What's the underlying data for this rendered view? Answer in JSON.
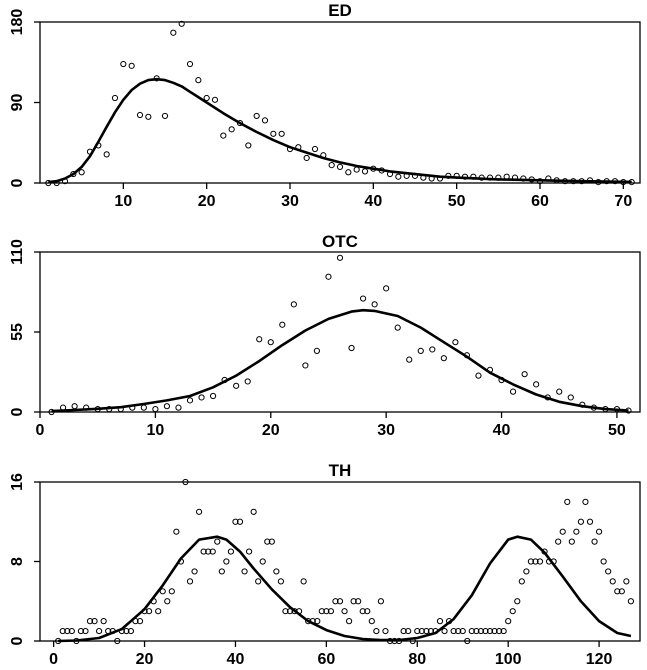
{
  "chart_data": [
    {
      "type": "scatter",
      "title": "ED",
      "xlim": [
        0,
        72
      ],
      "ylim": [
        0,
        180
      ],
      "xticks": [
        10,
        20,
        30,
        40,
        50,
        60,
        70
      ],
      "yticks": [
        0,
        90,
        180
      ],
      "series": [
        {
          "kind": "points",
          "x": [
            1,
            2,
            3,
            4,
            5,
            6,
            7,
            8,
            9,
            10,
            11,
            12,
            13,
            14,
            15,
            16,
            17,
            18,
            19,
            20,
            21,
            22,
            23,
            24,
            25,
            26,
            27,
            28,
            29,
            30,
            31,
            32,
            33,
            34,
            35,
            36,
            37,
            38,
            39,
            40,
            41,
            42,
            43,
            44,
            45,
            46,
            47,
            48,
            49,
            50,
            51,
            52,
            53,
            54,
            55,
            56,
            57,
            58,
            59,
            60,
            61,
            62,
            63,
            64,
            65,
            66,
            67,
            68,
            69,
            70,
            71
          ],
          "y": [
            0,
            0,
            2,
            10,
            12,
            35,
            42,
            32,
            95,
            133,
            131,
            76,
            74,
            117,
            75,
            168,
            178,
            133,
            115,
            95,
            93,
            53,
            60,
            67,
            42,
            75,
            70,
            55,
            55,
            38,
            40,
            28,
            38,
            31,
            20,
            18,
            12,
            15,
            13,
            16,
            14,
            10,
            7,
            8,
            8,
            6,
            5,
            5,
            8,
            8,
            7,
            7,
            6,
            6,
            6,
            7,
            6,
            5,
            4,
            2,
            5,
            3,
            2,
            2,
            2,
            3,
            1,
            2,
            2,
            1,
            1
          ]
        },
        {
          "kind": "fit",
          "x": [
            1,
            2,
            3,
            4,
            5,
            6,
            7,
            8,
            9,
            10,
            11,
            12,
            13,
            14,
            15,
            16,
            17,
            18,
            19,
            20,
            22,
            24,
            26,
            28,
            30,
            32,
            34,
            36,
            38,
            40,
            42,
            44,
            46,
            48,
            50,
            55,
            60,
            65,
            71
          ],
          "y": [
            1,
            2,
            5,
            10,
            18,
            30,
            46,
            63,
            79,
            93,
            104,
            111,
            115,
            116,
            115,
            112,
            108,
            102,
            96,
            90,
            78,
            67,
            57,
            48,
            40,
            34,
            28,
            23,
            19,
            16,
            13,
            11,
            9,
            7,
            6,
            4,
            3,
            2,
            1.2
          ]
        }
      ]
    },
    {
      "type": "scatter",
      "title": "OTC",
      "xlim": [
        0,
        52
      ],
      "ylim": [
        0,
        110
      ],
      "xticks": [
        0,
        10,
        20,
        30,
        40,
        50
      ],
      "yticks": [
        0,
        55,
        110
      ],
      "series": [
        {
          "kind": "points",
          "x": [
            1,
            2,
            3,
            4,
            5,
            6,
            7,
            8,
            9,
            10,
            11,
            12,
            13,
            14,
            15,
            16,
            17,
            18,
            19,
            20,
            21,
            22,
            23,
            24,
            25,
            26,
            27,
            28,
            29,
            30,
            31,
            32,
            33,
            34,
            35,
            36,
            37,
            38,
            39,
            40,
            41,
            42,
            43,
            44,
            45,
            46,
            47,
            48,
            49,
            50,
            51
          ],
          "y": [
            0,
            3,
            4,
            3,
            2,
            2,
            2,
            3,
            3,
            2,
            4,
            3,
            8,
            10,
            11,
            22,
            18,
            21,
            50,
            48,
            60,
            74,
            32,
            42,
            93,
            106,
            44,
            78,
            74,
            85,
            58,
            36,
            42,
            43,
            37,
            48,
            39,
            25,
            29,
            22,
            14,
            26,
            19,
            10,
            14,
            10,
            5,
            3,
            2,
            2,
            1
          ]
        },
        {
          "kind": "fit",
          "x": [
            1,
            3,
            5,
            7,
            9,
            11,
            13,
            15,
            17,
            19,
            21,
            23,
            25,
            27,
            28,
            29,
            31,
            33,
            35,
            37,
            39,
            41,
            43,
            45,
            47,
            49,
            51
          ],
          "y": [
            0.7,
            1.4,
            2.2,
            3.3,
            5.5,
            8,
            11,
            17,
            25,
            35,
            46,
            56,
            64,
            69,
            70,
            69.5,
            66,
            58,
            48,
            38,
            27,
            19,
            12,
            7,
            4,
            2,
            1
          ]
        }
      ]
    },
    {
      "type": "scatter",
      "title": "TH",
      "xlim": [
        -3,
        129
      ],
      "ylim": [
        0,
        16
      ],
      "xticks": [
        0,
        20,
        40,
        60,
        80,
        100,
        120
      ],
      "yticks": [
        0,
        8,
        16
      ],
      "series": [
        {
          "kind": "points",
          "x": [
            1,
            2,
            3,
            4,
            5,
            6,
            7,
            8,
            9,
            10,
            11,
            12,
            13,
            14,
            15,
            16,
            17,
            18,
            19,
            20,
            21,
            22,
            23,
            24,
            25,
            26,
            27,
            28,
            29,
            30,
            31,
            32,
            33,
            34,
            35,
            36,
            37,
            38,
            39,
            40,
            41,
            42,
            43,
            44,
            45,
            46,
            47,
            48,
            49,
            50,
            51,
            52,
            53,
            54,
            55,
            56,
            57,
            58,
            59,
            60,
            61,
            62,
            63,
            64,
            65,
            66,
            67,
            68,
            69,
            70,
            71,
            72,
            73,
            74,
            75,
            76,
            77,
            78,
            79,
            80,
            81,
            82,
            83,
            84,
            85,
            86,
            87,
            88,
            89,
            90,
            91,
            92,
            93,
            94,
            95,
            96,
            97,
            98,
            99,
            100,
            101,
            102,
            103,
            104,
            105,
            106,
            107,
            108,
            109,
            110,
            111,
            112,
            113,
            114,
            115,
            116,
            117,
            118,
            119,
            120,
            121,
            122,
            123,
            124,
            125,
            126,
            127
          ],
          "y": [
            0,
            1,
            1,
            1,
            0,
            1,
            1,
            2,
            2,
            1,
            2,
            1,
            1,
            0,
            1,
            1,
            1,
            2,
            2,
            3,
            3,
            4,
            3,
            5,
            4,
            5,
            11,
            8,
            16,
            6,
            7,
            13,
            9,
            9,
            9,
            10,
            7,
            8,
            9,
            12,
            12,
            7,
            9,
            13,
            6,
            8,
            10,
            10,
            7,
            6,
            3,
            3,
            3,
            3,
            6,
            2,
            2,
            2,
            3,
            3,
            3,
            4,
            4,
            3,
            2,
            4,
            4,
            3,
            3,
            2,
            1,
            4,
            1,
            0,
            0,
            0,
            1,
            1,
            0,
            1,
            1,
            1,
            1,
            1,
            2,
            1,
            2,
            1,
            1,
            1,
            0,
            1,
            1,
            1,
            1,
            1,
            1,
            1,
            1,
            2,
            3,
            4,
            6,
            7,
            8,
            8,
            8,
            9,
            8,
            8,
            10,
            11,
            14,
            10,
            11,
            12,
            14,
            12,
            10,
            11,
            8,
            7,
            6,
            5,
            5,
            6,
            4
          ]
        },
        {
          "kind": "fit",
          "x": [
            1,
            5,
            10,
            15,
            20,
            24,
            28,
            32,
            36,
            38,
            41,
            44,
            48,
            52,
            56,
            60,
            64,
            68,
            72,
            76,
            80,
            84,
            88,
            92,
            96,
            100,
            102,
            105,
            108,
            112,
            116,
            120,
            124,
            127
          ],
          "y": [
            0,
            0.05,
            0.3,
            1.2,
            3.2,
            5.6,
            8.3,
            10.2,
            10.5,
            10.2,
            9,
            7.3,
            5.2,
            3.4,
            2,
            1.1,
            0.5,
            0.2,
            0.1,
            0.1,
            0.3,
            0.8,
            2.2,
            4.6,
            7.8,
            10.2,
            10.5,
            10.2,
            8.9,
            6.5,
            4,
            2,
            0.8,
            0.5
          ]
        }
      ]
    }
  ]
}
